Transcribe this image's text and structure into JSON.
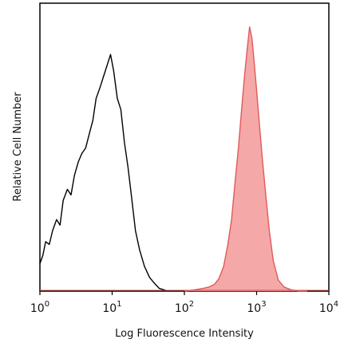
{
  "chart_data": {
    "type": "area",
    "title": "",
    "xlabel": "Log Fluorescence Intensity",
    "ylabel": "Relative Cell Number",
    "x_scale": "log",
    "xlim": [
      1,
      10000
    ],
    "ylim": [
      0,
      1.0
    ],
    "x_ticks": [
      {
        "base": "10",
        "exp": "0",
        "value": 1
      },
      {
        "base": "10",
        "exp": "1",
        "value": 10
      },
      {
        "base": "10",
        "exp": "2",
        "value": 100
      },
      {
        "base": "10",
        "exp": "3",
        "value": 1000
      },
      {
        "base": "10",
        "exp": "4",
        "value": 10000
      }
    ],
    "grid": false,
    "legend": "none",
    "series": [
      {
        "style": "outline",
        "color": "#000000",
        "x": [
          1.0,
          1.1,
          1.2,
          1.35,
          1.5,
          1.7,
          1.9,
          2.1,
          2.4,
          2.7,
          3.0,
          3.4,
          3.8,
          4.3,
          4.8,
          5.4,
          6.0,
          6.8,
          7.6,
          8.5,
          9.5,
          10.5,
          11.8,
          13.2,
          14.8,
          16.6,
          18.6,
          21,
          24,
          28,
          33,
          38,
          45,
          60
        ],
        "y": [
          0.1,
          0.13,
          0.18,
          0.17,
          0.22,
          0.26,
          0.24,
          0.33,
          0.37,
          0.35,
          0.42,
          0.47,
          0.5,
          0.52,
          0.57,
          0.62,
          0.7,
          0.74,
          0.78,
          0.82,
          0.86,
          0.8,
          0.7,
          0.66,
          0.54,
          0.45,
          0.34,
          0.22,
          0.15,
          0.09,
          0.05,
          0.03,
          0.01,
          0.0
        ]
      },
      {
        "style": "filled",
        "color": "#e05a5a",
        "fill": "#f5a8a8",
        "x": [
          100,
          140,
          180,
          220,
          260,
          300,
          350,
          400,
          450,
          500,
          560,
          620,
          680,
          740,
          800,
          860,
          920,
          1000,
          1100,
          1200,
          1350,
          1500,
          1700,
          2000,
          2400,
          3000,
          4000,
          5000
        ],
        "y": [
          0.0,
          0.005,
          0.01,
          0.015,
          0.025,
          0.045,
          0.09,
          0.17,
          0.26,
          0.39,
          0.52,
          0.66,
          0.78,
          0.88,
          0.96,
          0.92,
          0.84,
          0.73,
          0.6,
          0.48,
          0.34,
          0.22,
          0.11,
          0.04,
          0.015,
          0.005,
          0.0,
          0.0
        ]
      }
    ]
  }
}
